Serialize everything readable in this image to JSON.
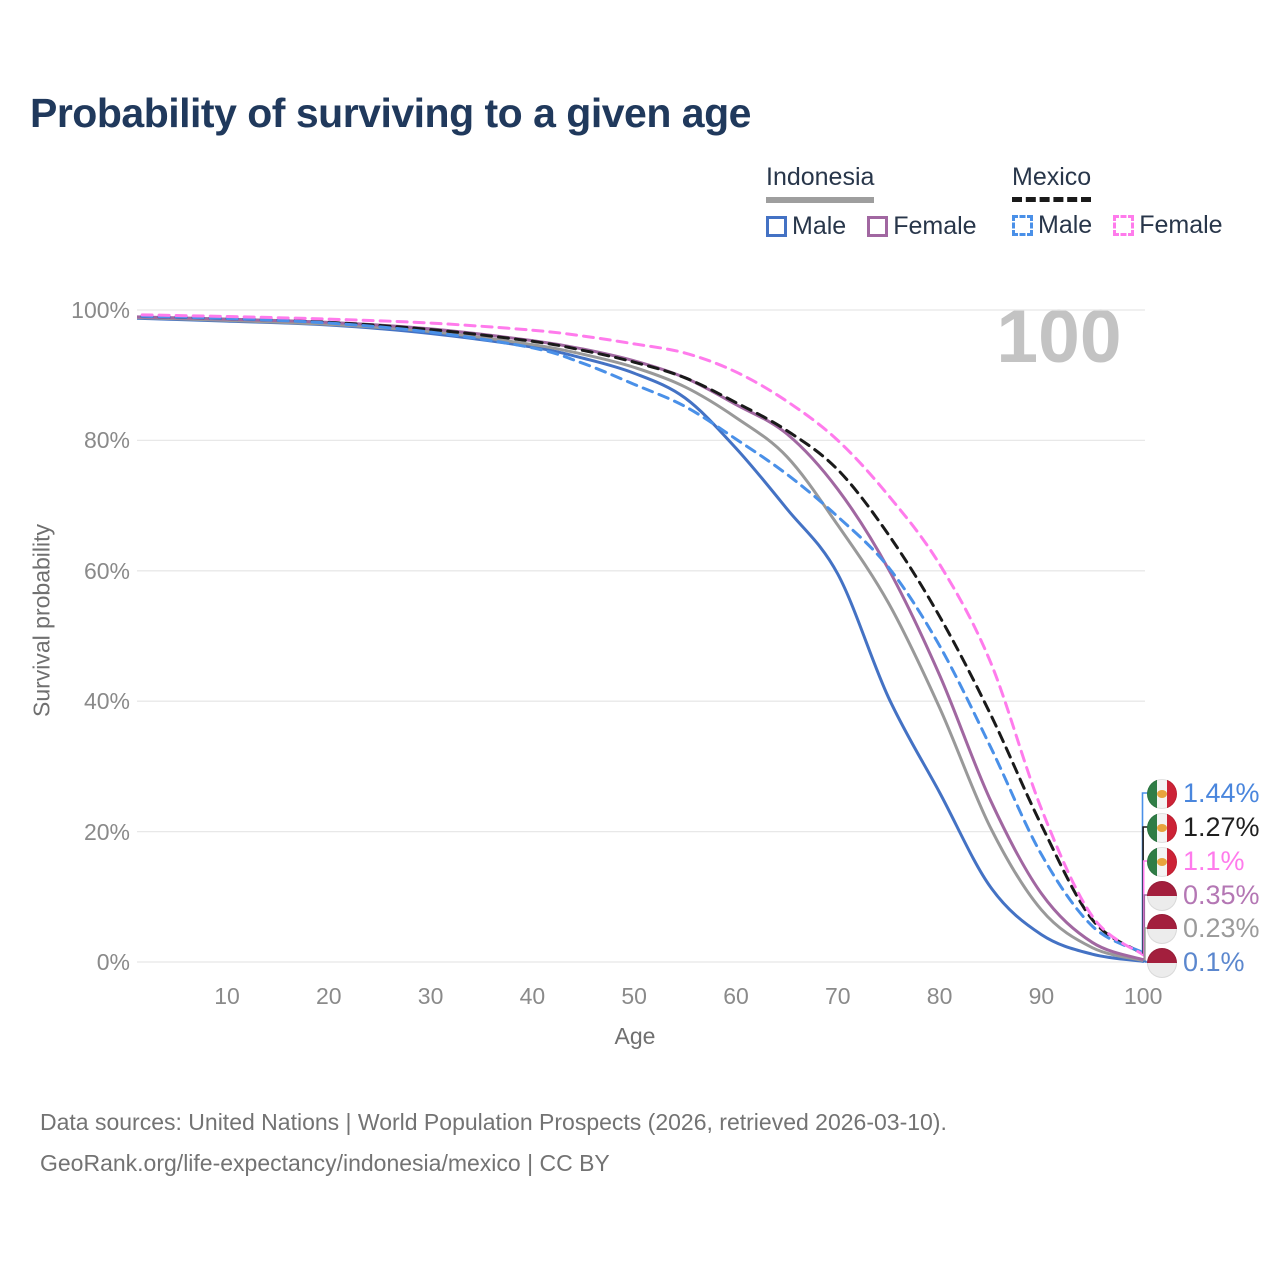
{
  "title": "Probability of surviving to a given age",
  "age_counter": "100",
  "legend": {
    "groups": [
      {
        "label": "Indonesia",
        "line_style": "solid",
        "underline_color": "#9e9e9e",
        "items": [
          {
            "label": "Male",
            "color": "#4472c4"
          },
          {
            "label": "Female",
            "color": "#a167a1"
          }
        ]
      },
      {
        "label": "Mexico",
        "line_style": "dashed",
        "underline_color": "#1a1a1a",
        "items": [
          {
            "label": "Male",
            "color": "#4a90e8"
          },
          {
            "label": "Female",
            "color": "#ff7bec"
          }
        ]
      }
    ]
  },
  "chart_data": {
    "type": "line",
    "title": "Probability of surviving to a given age",
    "xlabel": "Age",
    "ylabel": "Survival probability",
    "xlim": [
      0,
      100
    ],
    "ylim": [
      0,
      100
    ],
    "grid": "horizontal",
    "x_ticks": [
      "10",
      "20",
      "30",
      "40",
      "50",
      "60",
      "70",
      "80",
      "90",
      "100"
    ],
    "y_ticks": [
      "0%",
      "20%",
      "40%",
      "60%",
      "80%",
      "100%"
    ],
    "x": [
      0,
      10,
      20,
      30,
      40,
      45,
      50,
      55,
      60,
      65,
      70,
      75,
      80,
      85,
      90,
      95,
      100
    ],
    "series": [
      {
        "name": "Indonesia Male",
        "country": "Indonesia",
        "sex": "male",
        "color": "#4472c4",
        "dashed": false,
        "values": [
          98.8,
          98.3,
          97.7,
          96.4,
          94.3,
          92.6,
          90.3,
          86.5,
          78.8,
          69.5,
          59.5,
          40.5,
          26.0,
          11.5,
          4.2,
          1.2,
          0.1
        ]
      },
      {
        "name": "Indonesia All",
        "country": "Indonesia",
        "sex": "all",
        "color": "#999999",
        "dashed": false,
        "values": [
          98.9,
          98.4,
          97.8,
          96.7,
          94.7,
          93.2,
          91.2,
          88.2,
          83.5,
          77.5,
          67.0,
          55.0,
          39.0,
          20.6,
          8.0,
          2.2,
          0.23
        ]
      },
      {
        "name": "Indonesia Female",
        "country": "Indonesia",
        "sex": "female",
        "color": "#a167a1",
        "dashed": false,
        "values": [
          99.0,
          98.6,
          98.1,
          97.1,
          95.3,
          94.0,
          92.2,
          89.6,
          85.5,
          81.0,
          72.5,
          60.2,
          44.0,
          24.8,
          10.5,
          3.0,
          0.35
        ]
      },
      {
        "name": "Mexico Male",
        "country": "Mexico",
        "sex": "male",
        "color": "#4a90e8",
        "dashed": true,
        "values": [
          99.1,
          98.7,
          98.0,
          96.6,
          94.2,
          91.8,
          88.6,
          85.2,
          80.2,
          74.8,
          68.3,
          60.5,
          48.5,
          33.0,
          16.5,
          5.5,
          1.44
        ]
      },
      {
        "name": "Mexico All",
        "country": "Mexico",
        "sex": "all",
        "color": "#1a1a1a",
        "dashed": true,
        "values": [
          99.1,
          98.7,
          98.1,
          97.0,
          95.2,
          93.8,
          92.0,
          89.6,
          85.8,
          81.5,
          75.5,
          65.5,
          53.0,
          38.0,
          21.0,
          6.5,
          1.27
        ]
      },
      {
        "name": "Mexico Female",
        "country": "Mexico",
        "sex": "female",
        "color": "#ff7bec",
        "dashed": true,
        "values": [
          99.3,
          99.0,
          98.6,
          98.0,
          96.9,
          96.0,
          94.8,
          93.4,
          90.5,
          86.0,
          80.0,
          71.5,
          61.0,
          46.0,
          23.5,
          7.0,
          1.1
        ]
      }
    ],
    "end_labels": [
      {
        "value": "1.44%",
        "flag": "mexico",
        "series": "Mexico Male",
        "series_index": 3,
        "label_color": "#4a86dd"
      },
      {
        "value": "1.27%",
        "flag": "mexico",
        "series": "Mexico All",
        "series_index": 4,
        "label_color": "#1f1f1f"
      },
      {
        "value": "1.1%",
        "flag": "mexico",
        "series": "Mexico Female",
        "series_index": 5,
        "label_color": "#ff7bec"
      },
      {
        "value": "0.35%",
        "flag": "indonesia",
        "series": "Indonesia Female",
        "series_index": 2,
        "label_color": "#b477b4"
      },
      {
        "value": "0.23%",
        "flag": "indonesia",
        "series": "Indonesia All",
        "series_index": 1,
        "label_color": "#9b9b9b"
      },
      {
        "value": "0.1%",
        "flag": "indonesia",
        "series": "Indonesia Male",
        "series_index": 0,
        "label_color": "#5b87ce"
      }
    ]
  },
  "source": {
    "line1": "Data sources: United Nations | World Population Prospects (2026, retrieved 2026-03-10).",
    "line2": "GeoRank.org/life-expectancy/indonesia/mexico | CC BY"
  },
  "colors": {
    "title": "#20395c",
    "grid": "#e8e8e8",
    "tick_text": "#8a8a8a",
    "axis_title_text": "#707070",
    "watermark": "#c3c3c3",
    "source_text": "#737373"
  }
}
